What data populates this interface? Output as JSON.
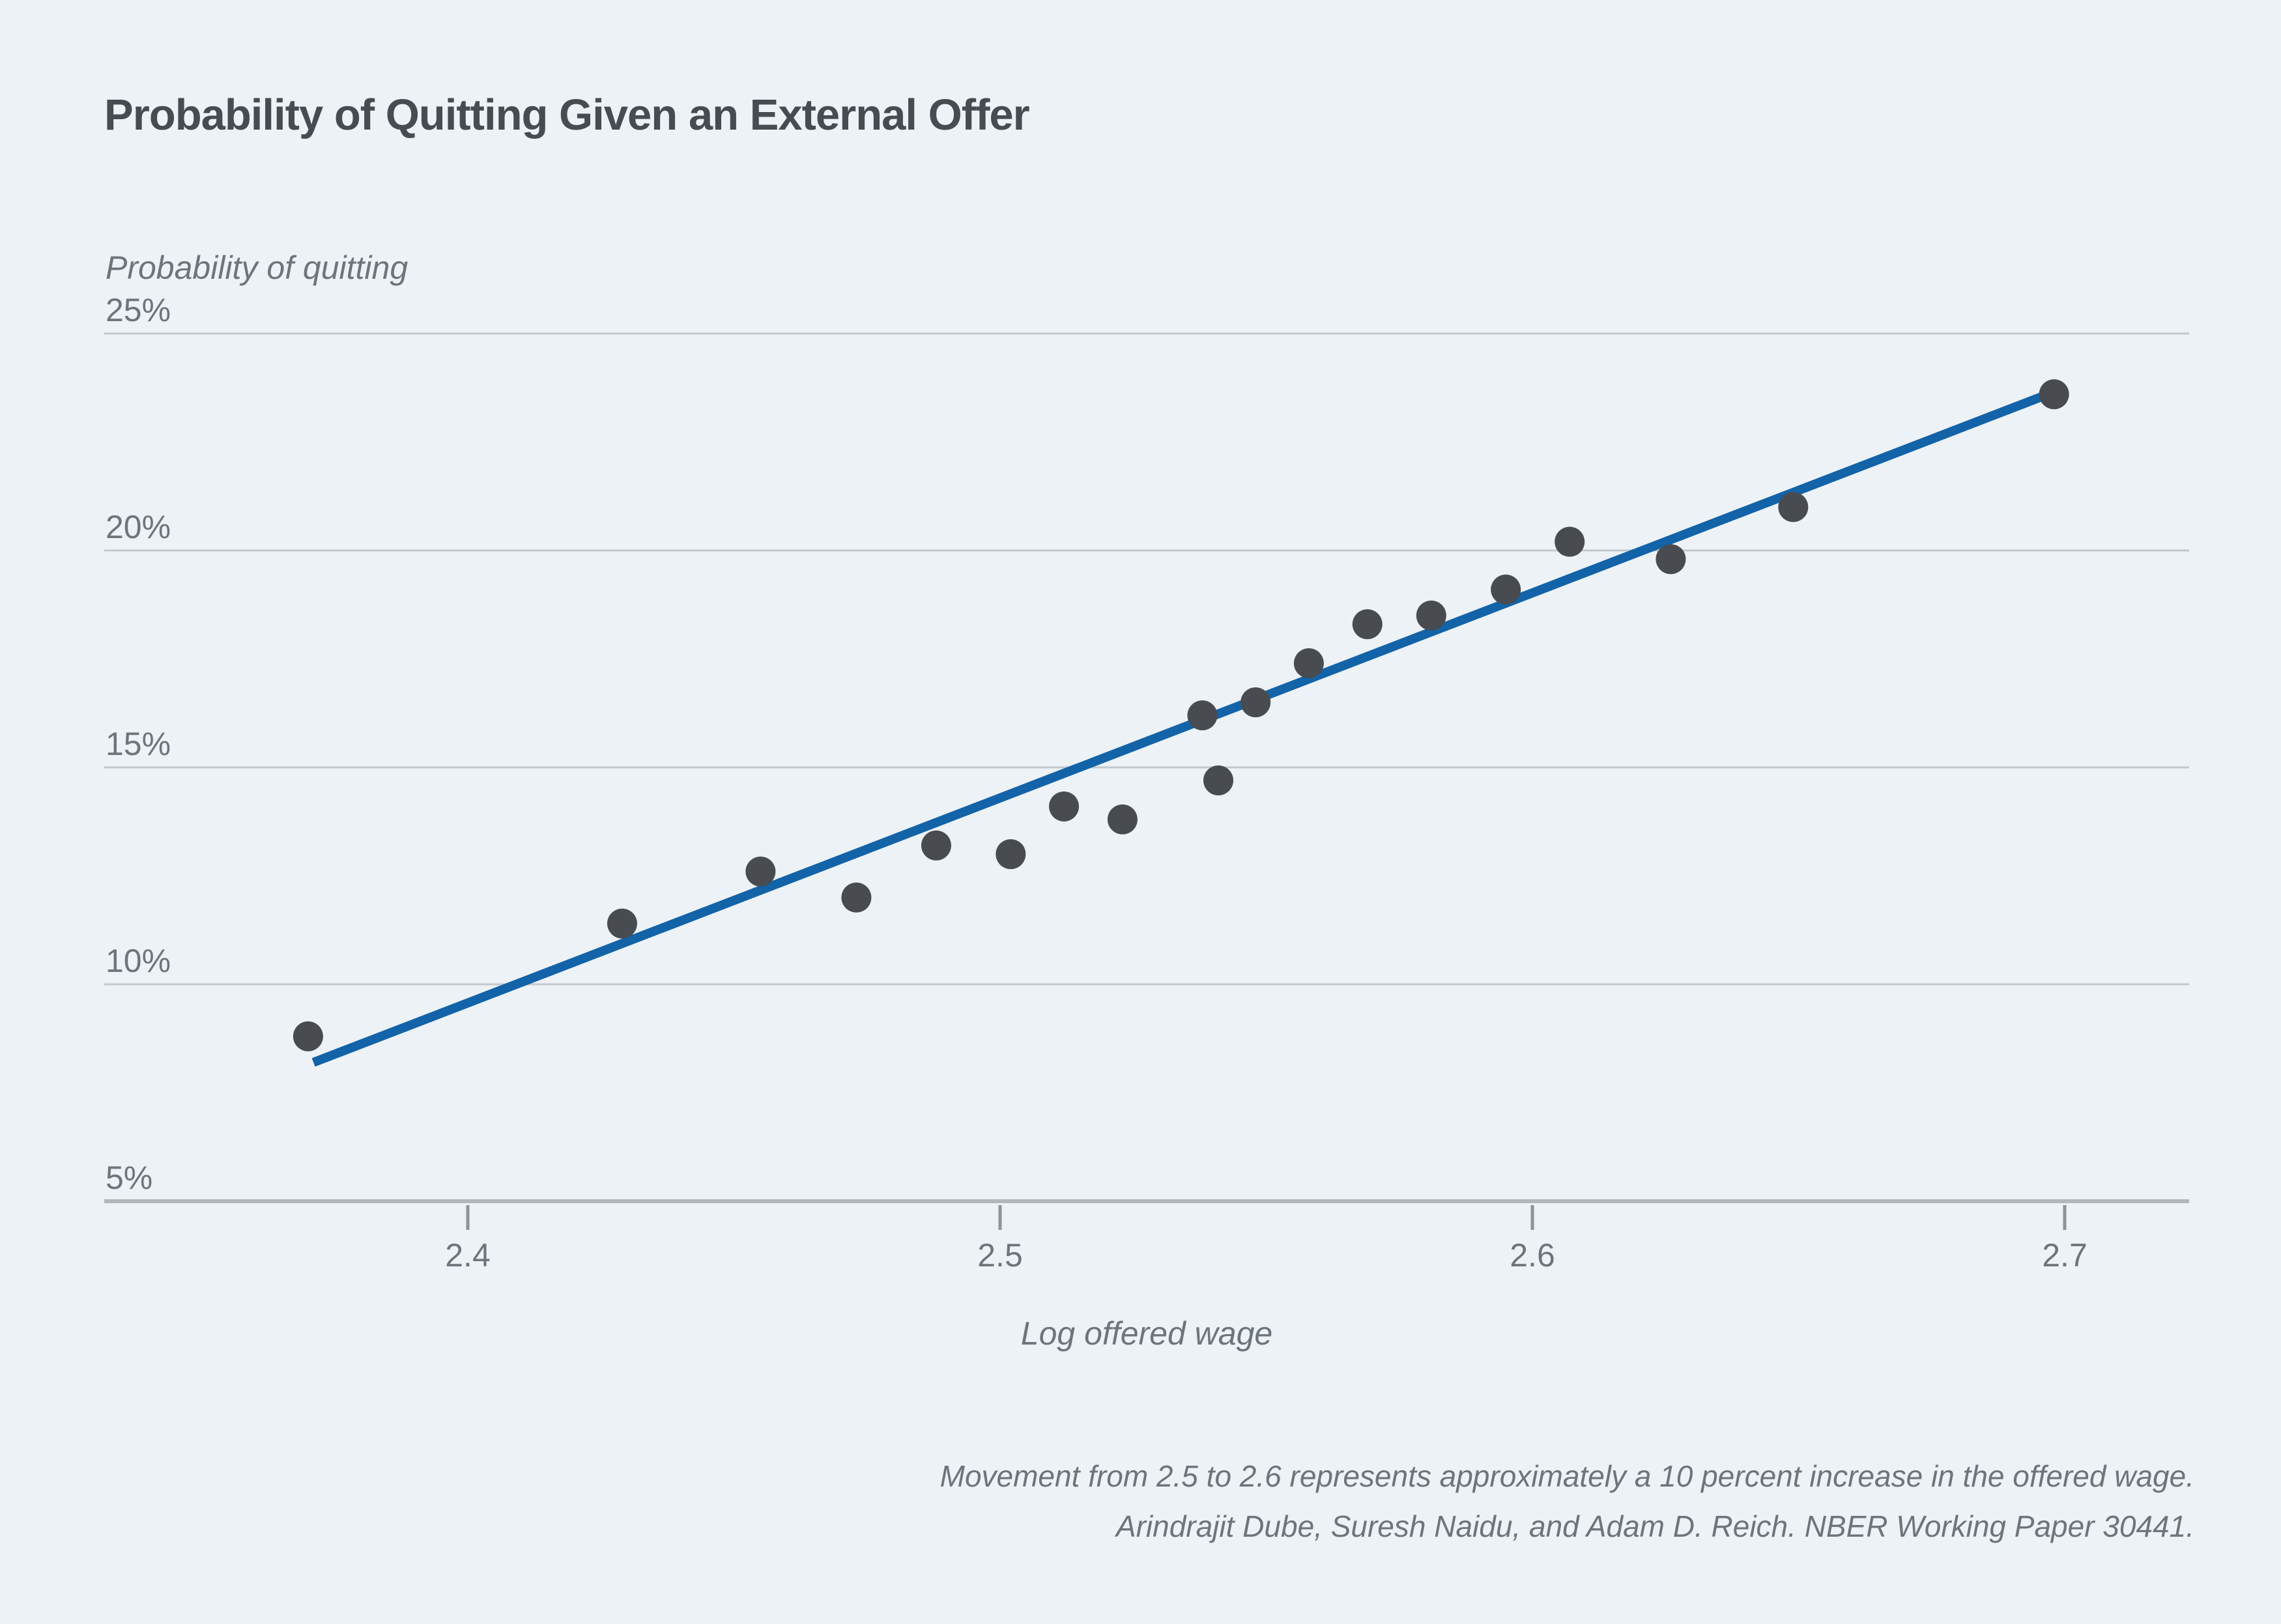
{
  "chart": {
    "caption_lines": [
      "Movement from 2.5 to 2.6 represents approximately a 10 percent increase in the offered wage.",
      "Arindrajit Dube, Suresh Naidu, and Adam D. Reich. NBER Working Paper 30441."
    ]
  },
  "colors": {
    "background": "#edf2f7",
    "dot": "#484c50",
    "trend_line": "#1263a8",
    "gridline": "#c3c8cd",
    "axis_line": "#b2b7bc",
    "tick_mark": "#8d9399",
    "title_text": "#474c52",
    "label_text": "#6e747b"
  },
  "chart_data": {
    "type": "scatter",
    "title": "Probability of Quitting Given an External Offer",
    "xlabel": "Log offered wage",
    "ylabel": "Probability of quitting",
    "xlim": [
      2.332,
      2.723
    ],
    "ylim": [
      5,
      25
    ],
    "grid": true,
    "y_ticks": [
      {
        "value": 25,
        "label": "25%"
      },
      {
        "value": 20,
        "label": "20%"
      },
      {
        "value": 15,
        "label": "15%"
      },
      {
        "value": 10,
        "label": "10%"
      },
      {
        "value": 5,
        "label": "5%"
      }
    ],
    "x_ticks": [
      {
        "value": 2.4,
        "label": "2.4"
      },
      {
        "value": 2.5,
        "label": "2.5"
      },
      {
        "value": 2.6,
        "label": "2.6"
      },
      {
        "value": 2.7,
        "label": "2.7"
      }
    ],
    "points": [
      [
        2.37,
        8.8
      ],
      [
        2.429,
        11.4
      ],
      [
        2.455,
        12.6
      ],
      [
        2.473,
        12.0
      ],
      [
        2.488,
        13.2
      ],
      [
        2.502,
        13.0
      ],
      [
        2.512,
        14.1
      ],
      [
        2.523,
        13.8
      ],
      [
        2.538,
        16.2
      ],
      [
        2.541,
        14.7
      ],
      [
        2.548,
        16.5
      ],
      [
        2.558,
        17.4
      ],
      [
        2.569,
        18.3
      ],
      [
        2.581,
        18.5
      ],
      [
        2.595,
        19.1
      ],
      [
        2.607,
        20.2
      ],
      [
        2.626,
        19.8
      ],
      [
        2.649,
        21.0
      ],
      [
        2.698,
        23.6
      ]
    ],
    "trend_line": {
      "x1": 2.371,
      "y1": 8.2,
      "x2": 2.699,
      "y2": 23.7
    },
    "annotations": [
      "Movement from 2.5 to 2.6 represents approximately a 10 percent increase in the offered wage.",
      "Arindrajit Dube, Suresh Naidu, and Adam D. Reich. NBER Working Paper 30441."
    ]
  }
}
